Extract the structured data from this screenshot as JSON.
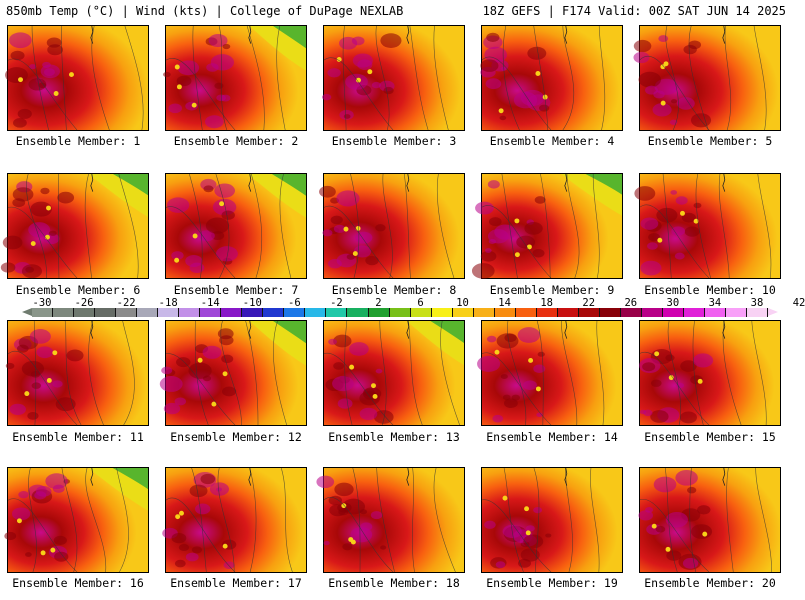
{
  "header": {
    "left": "850mb Temp (°C) | Wind (kts) | College of DuPage NEXLAB",
    "right": "18Z GEFS | F174 Valid: 00Z SAT JUN 14 2025"
  },
  "panels": [
    {
      "label": "Ensemble Member: 1",
      "warmth": 0.78
    },
    {
      "label": "Ensemble Member: 2",
      "warmth": 0.62
    },
    {
      "label": "Ensemble Member: 3",
      "warmth": 0.7
    },
    {
      "label": "Ensemble Member: 4",
      "warmth": 0.72
    },
    {
      "label": "Ensemble Member: 5",
      "warmth": 0.74
    },
    {
      "label": "Ensemble Member: 6",
      "warmth": 0.55
    },
    {
      "label": "Ensemble Member: 7",
      "warmth": 0.58
    },
    {
      "label": "Ensemble Member: 8",
      "warmth": 0.68
    },
    {
      "label": "Ensemble Member: 9",
      "warmth": 0.5
    },
    {
      "label": "Ensemble Member: 10",
      "warmth": 0.72
    },
    {
      "label": "Ensemble Member: 11",
      "warmth": 0.74
    },
    {
      "label": "Ensemble Member: 12",
      "warmth": 0.62
    },
    {
      "label": "Ensemble Member: 13",
      "warmth": 0.6
    },
    {
      "label": "Ensemble Member: 14",
      "warmth": 0.66
    },
    {
      "label": "Ensemble Member: 15",
      "warmth": 0.66
    },
    {
      "label": "Ensemble Member: 16",
      "warmth": 0.54
    },
    {
      "label": "Ensemble Member: 17",
      "warmth": 0.72
    },
    {
      "label": "Ensemble Member: 18",
      "warmth": 0.8
    },
    {
      "label": "Ensemble Member: 19",
      "warmth": 0.68
    },
    {
      "label": "Ensemble Member: 20",
      "warmth": 0.8
    }
  ],
  "colorbar": {
    "ticks": [
      "-30",
      "-26",
      "-22",
      "-18",
      "-14",
      "-10",
      "-6",
      "-2",
      "2",
      "6",
      "10",
      "14",
      "18",
      "22",
      "26",
      "30",
      "34",
      "38",
      "42"
    ],
    "colors": [
      "#8a968a",
      "#7d887d",
      "#6e786e",
      "#666c66",
      "#8b8b8b",
      "#a8a8b8",
      "#c8b8e8",
      "#c290e8",
      "#a048d8",
      "#8818c8",
      "#3818b8",
      "#2038d0",
      "#1c78e8",
      "#28b8e8",
      "#20c8a8",
      "#18b060",
      "#20a030",
      "#78c018",
      "#c8e018",
      "#f8f018",
      "#f8d018",
      "#f8b018",
      "#f88c10",
      "#f86010",
      "#e83010",
      "#c81010",
      "#a80808",
      "#880008",
      "#980048",
      "#b80088",
      "#d000b0",
      "#e020d8",
      "#f060f0",
      "#f8a0f8",
      "#f8d2f4"
    ]
  }
}
